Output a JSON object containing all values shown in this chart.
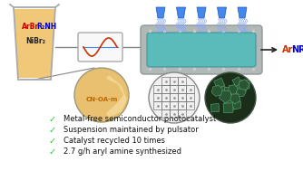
{
  "background_color": "#ffffff",
  "bullet_points": [
    "Metal-free semiconductor photocatalyst",
    "Suspension maintained by pulsator",
    "Catalyst recycled 10 times",
    "2.7 g/h aryl amine synthesized"
  ],
  "check_color": "#22cc22",
  "text_color": "#111111",
  "beaker_fill": "#f0c878",
  "beaker_stroke": "#aaaaaa",
  "ArBr_color": "#cc0000",
  "R2NH_color": "#0000cc",
  "NiBr2_color": "#222222",
  "CNOAm_color": "#bb6600",
  "reactor_fill": "#5bbaba",
  "reactor_shell": "#b0b8b8",
  "arrow_color": "#222222",
  "ArNR2_red": "#cc3300",
  "ArNR2_blue": "#0000cc",
  "lamp_color": "#4488ee",
  "ray_color": "#88aaff",
  "sine_color": "#cc3300",
  "sine_line_color": "#4488ff",
  "sine_bg": "#f8f8f8",
  "sine_border": "#aaaaaa",
  "connect_color": "#888888"
}
